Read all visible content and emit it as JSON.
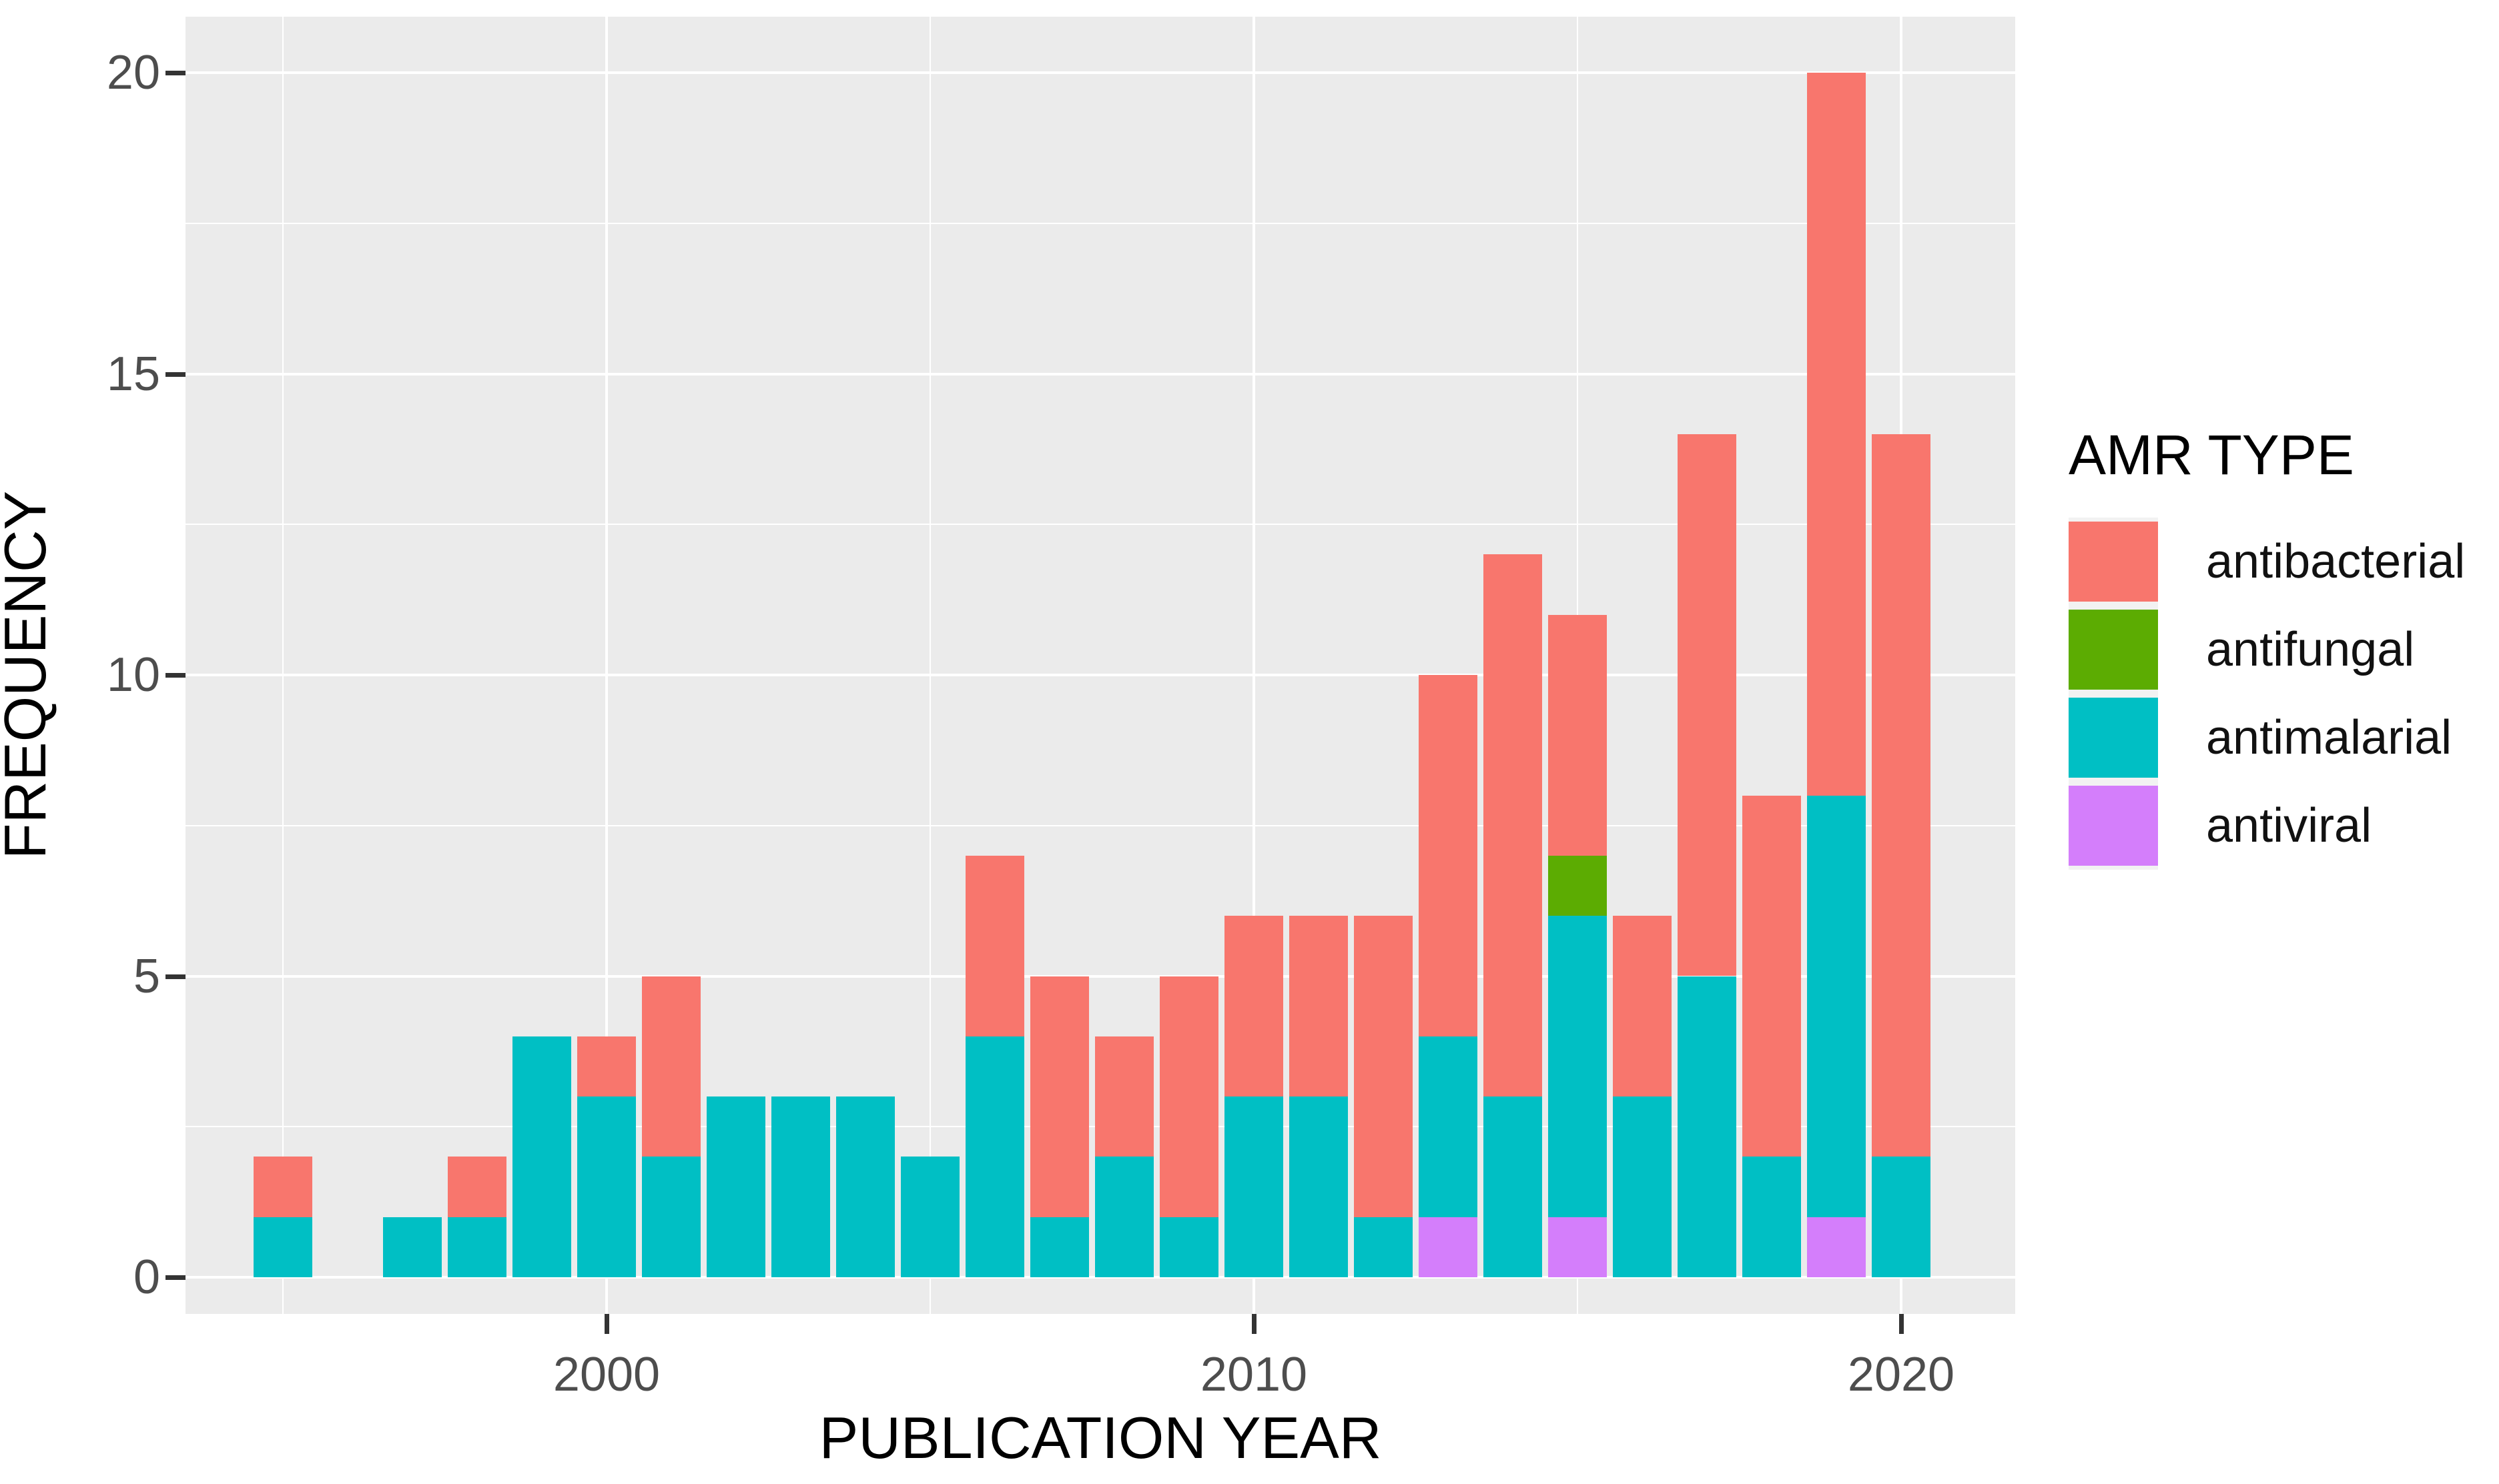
{
  "legend": {
    "title": "AMR TYPE",
    "items": [
      {
        "label": "antibacterial",
        "color": "#F8766D"
      },
      {
        "label": "antifungal",
        "color": "#5CAC02"
      },
      {
        "label": "antimalarial",
        "color": "#00BFC4"
      },
      {
        "label": "antiviral",
        "color": "#D47EFB"
      }
    ]
  },
  "axes": {
    "x_title": "PUBLICATION YEAR",
    "y_title": "FREQUENCY"
  },
  "chart_data": {
    "type": "bar",
    "stacked": true,
    "title": "",
    "xlabel": "PUBLICATION YEAR",
    "ylabel": "FREQUENCY",
    "x": [
      1995,
      1996,
      1997,
      1998,
      1999,
      2000,
      2001,
      2002,
      2003,
      2004,
      2005,
      2006,
      2007,
      2008,
      2009,
      2010,
      2011,
      2012,
      2013,
      2014,
      2015,
      2016,
      2017,
      2018,
      2019,
      2020
    ],
    "series": [
      {
        "name": "antiviral",
        "color": "#D47EFB",
        "values": [
          0,
          0,
          0,
          0,
          0,
          0,
          0,
          0,
          0,
          0,
          0,
          0,
          0,
          0,
          0,
          0,
          0,
          0,
          1,
          0,
          1,
          0,
          0,
          0,
          1,
          0
        ]
      },
      {
        "name": "antimalarial",
        "color": "#00BFC4",
        "values": [
          1,
          0,
          1,
          1,
          4,
          3,
          2,
          3,
          3,
          3,
          2,
          4,
          1,
          2,
          1,
          3,
          3,
          1,
          3,
          3,
          5,
          3,
          5,
          2,
          7,
          2
        ]
      },
      {
        "name": "antifungal",
        "color": "#5CAC02",
        "values": [
          0,
          0,
          0,
          0,
          0,
          0,
          0,
          0,
          0,
          0,
          0,
          0,
          0,
          0,
          0,
          0,
          0,
          0,
          0,
          0,
          1,
          0,
          0,
          0,
          0,
          0
        ]
      },
      {
        "name": "antibacterial",
        "color": "#F8766D",
        "values": [
          1,
          0,
          0,
          1,
          0,
          1,
          3,
          0,
          0,
          0,
          0,
          3,
          4,
          2,
          4,
          3,
          3,
          5,
          6,
          9,
          4,
          3,
          9,
          6,
          12,
          12
        ]
      }
    ],
    "totals_by_year": {
      "1995": 2,
      "1996": 0,
      "1997": 1,
      "1998": 2,
      "1999": 4,
      "2000": 4,
      "2001": 5,
      "2002": 3,
      "2003": 3,
      "2004": 3,
      "2005": 2,
      "2006": 7,
      "2007": 5,
      "2008": 4,
      "2009": 5,
      "2010": 6,
      "2011": 6,
      "2012": 6,
      "2013": 10,
      "2014": 12,
      "2015": 11,
      "2016": 6,
      "2017": 14,
      "2018": 8,
      "2019": 20,
      "2020": 14
    },
    "x_major_ticks": [
      2000,
      2010,
      2020
    ],
    "x_minor_gridlines": [
      1995,
      2005,
      2015
    ],
    "y_major_ticks": [
      0,
      5,
      10,
      15,
      20
    ],
    "y_minor_gridlines": [
      2.5,
      7.5,
      12.5,
      17.5
    ],
    "ylim": [
      0,
      20
    ],
    "xlim": [
      1993.5,
      2021.75
    ],
    "bar_width_years": 0.9,
    "grid": true,
    "legend_position": "right",
    "panel_background": "#EBEBEB",
    "grid_color": "#FFFFFF",
    "tick_label_color": "#4D4D4D",
    "axis_title_color": "#000000"
  }
}
